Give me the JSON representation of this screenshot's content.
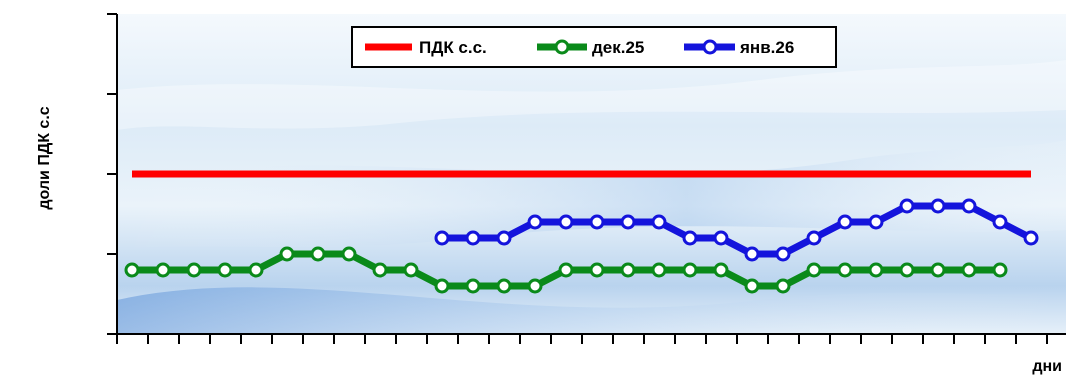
{
  "chart_data": {
    "type": "line",
    "xlabel": "дни",
    "ylabel": "доли ПДК с.с",
    "x": [
      1,
      2,
      3,
      4,
      5,
      6,
      7,
      8,
      9,
      10,
      11,
      12,
      13,
      14,
      15,
      16,
      17,
      18,
      19,
      20,
      21,
      22,
      23,
      24,
      25,
      26,
      27,
      28,
      29,
      30,
      31
    ],
    "ylim": [
      0,
      2.0
    ],
    "y_ticks": [
      0,
      0.5,
      1.0,
      1.5,
      2.0
    ],
    "grid": false,
    "legend_position": "top",
    "series": [
      {
        "name": "ПДК с.с.",
        "color": "#ff0000",
        "marker": "none",
        "x": [
          1,
          30
        ],
        "values": [
          1.0,
          1.0
        ]
      },
      {
        "name": "дек.25",
        "color": "#0a8a1a",
        "marker": "circle",
        "x": [
          1,
          2,
          3,
          4,
          5,
          6,
          7,
          8,
          9,
          10,
          11,
          12,
          13,
          14,
          15,
          16,
          17,
          18,
          19,
          20,
          21,
          22,
          23,
          24,
          25,
          26,
          27,
          28,
          29
        ],
        "values": [
          0.4,
          0.4,
          0.4,
          0.4,
          0.4,
          0.5,
          0.5,
          0.5,
          0.4,
          0.4,
          0.3,
          0.3,
          0.3,
          0.3,
          0.4,
          0.4,
          0.4,
          0.4,
          0.4,
          0.4,
          0.3,
          0.3,
          0.4,
          0.4,
          0.4,
          0.4,
          0.4,
          0.4,
          0.4
        ]
      },
      {
        "name": "янв.26",
        "color": "#1414dc",
        "marker": "circle",
        "x": [
          11,
          12,
          13,
          14,
          15,
          16,
          17,
          18,
          19,
          20,
          21,
          22,
          23,
          24,
          25,
          26,
          27,
          28,
          29,
          30
        ],
        "values": [
          0.6,
          0.6,
          0.6,
          0.7,
          0.7,
          0.7,
          0.7,
          0.7,
          0.6,
          0.6,
          0.5,
          0.5,
          0.6,
          0.7,
          0.7,
          0.8,
          0.8,
          0.8,
          0.7,
          0.6
        ]
      }
    ]
  }
}
